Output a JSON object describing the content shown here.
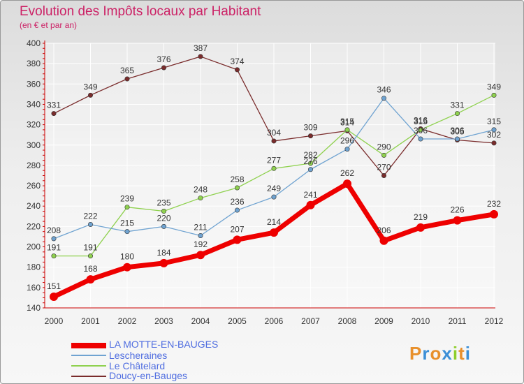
{
  "title": "Evolution des Impôts locaux par Habitant",
  "subtitle": "(en € et par an)",
  "logo": {
    "text": "Proxiti",
    "colors": [
      "#e8902c",
      "#3c8fd6",
      "#e8902c",
      "#3c8fd6",
      "#8fce2c",
      "#e8902c",
      "#3c8fd6"
    ]
  },
  "chart_data": {
    "type": "line",
    "x": [
      "2000",
      "2001",
      "2002",
      "2003",
      "2004",
      "2005",
      "2006",
      "2007",
      "2008",
      "2009",
      "2010",
      "2011",
      "2012"
    ],
    "ylim": [
      140,
      400
    ],
    "yticks": [
      "140",
      "160",
      "180",
      "200",
      "220",
      "240",
      "260",
      "280",
      "300",
      "320",
      "340",
      "360",
      "380",
      "400"
    ],
    "grid": true,
    "series": [
      {
        "name": "Doucy-en-Bauges",
        "color": "#7a2c2c",
        "values": [
          331,
          349,
          365,
          376,
          387,
          374,
          304,
          309,
          314,
          270,
          316,
          305,
          302
        ],
        "labels": [
          "331",
          "349",
          "365",
          "376",
          "387",
          "374",
          "304",
          "309",
          "314",
          "270",
          "316",
          "305",
          "302"
        ]
      },
      {
        "name": "Le Châtelard",
        "color": "#8fd14f",
        "values": [
          191,
          191,
          239,
          235,
          248,
          258,
          277,
          282,
          315,
          290,
          315,
          331,
          349
        ],
        "labels": [
          "191",
          "191",
          "239",
          "235",
          "248",
          "258",
          "277",
          "282",
          "315",
          "290",
          "315",
          "331",
          "349"
        ]
      },
      {
        "name": "Lescheraines",
        "color": "#6fa3d1",
        "values": [
          208,
          222,
          215,
          220,
          211,
          236,
          249,
          276,
          296,
          346,
          306,
          306,
          315
        ],
        "labels": [
          "208",
          "222",
          "215",
          "220",
          "211",
          "236",
          "249",
          "276",
          "296",
          "346",
          "306",
          "306",
          "315"
        ]
      },
      {
        "name": "LA MOTTE-EN-BAUGES",
        "color": "#ee0000",
        "values": [
          151,
          168,
          180,
          184,
          192,
          207,
          214,
          241,
          262,
          206,
          219,
          226,
          232
        ],
        "labels": [
          "151",
          "168",
          "180",
          "184",
          "192",
          "207",
          "214",
          "241",
          "262",
          "206",
          "219",
          "226",
          "232"
        ]
      }
    ],
    "legend": [
      {
        "name": "LA MOTTE-EN-BAUGES",
        "color": "#ee0000"
      },
      {
        "name": "Lescheraines",
        "color": "#6fa3d1"
      },
      {
        "name": "Le Châtelard",
        "color": "#8fd14f"
      },
      {
        "name": "Doucy-en-Bauges",
        "color": "#7a2c2c"
      }
    ]
  }
}
